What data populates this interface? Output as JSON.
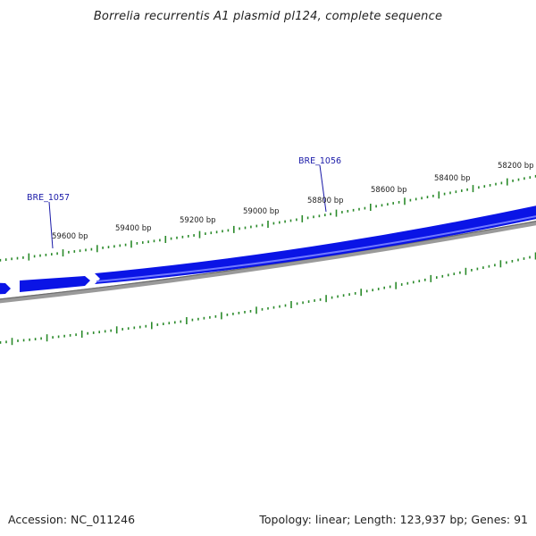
{
  "title": "Borrelia recurrentis A1 plasmid pl124, complete sequence",
  "accession": "Accession: NC_011246",
  "summary": "Topology: linear; Length: 123,937 bp; Genes: 91",
  "colors": {
    "gene_fill": "#0a14e6",
    "gene_highlight": "#6f78ff",
    "backbone": "#808080",
    "tick": "#2a8a2a",
    "gene_label": "#1a1aa8"
  },
  "scale_ticks": [
    {
      "label": "59600 bp"
    },
    {
      "label": "59400 bp"
    },
    {
      "label": "59200 bp"
    },
    {
      "label": "59000 bp"
    },
    {
      "label": "58800 bp"
    },
    {
      "label": "58600 bp"
    },
    {
      "label": "58400 bp"
    },
    {
      "label": "58200 bp"
    }
  ],
  "genes": [
    {
      "name": "BRE_1057"
    },
    {
      "name": "BRE_1056"
    }
  ]
}
